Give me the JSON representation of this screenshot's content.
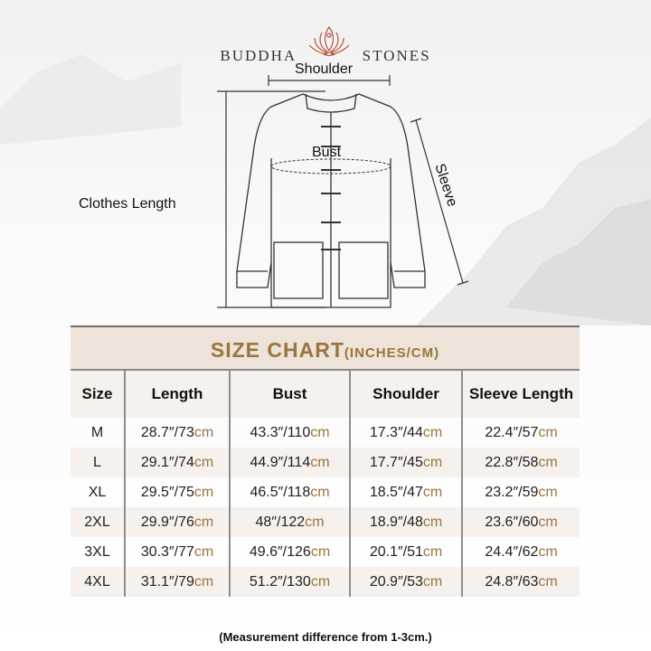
{
  "logo": {
    "left": "BUDDHA",
    "right": "STONES",
    "colors": {
      "text": "#3a3030",
      "lotus": "#b5533a"
    }
  },
  "diagram": {
    "shoulder": "Shoulder",
    "bust": "Bust",
    "clothes_length": "Clothes Length",
    "sleeve": "Sleeve"
  },
  "size_chart": {
    "title": "SIZE CHART",
    "title_units": "(INCHES/CM)",
    "accent": "#9a7540",
    "headers": [
      "Size",
      "Length",
      "Bust",
      "Shoulder",
      "Sleeve Length"
    ],
    "rows": [
      {
        "size": "M",
        "cells": [
          {
            "v": "28.7″/73",
            "u": "cm"
          },
          {
            "v": "43.3″/110",
            "u": "cm"
          },
          {
            "v": "17.3″/44",
            "u": "cm"
          },
          {
            "v": "22.4″/57",
            "u": "cm"
          }
        ]
      },
      {
        "size": "L",
        "cells": [
          {
            "v": "29.1″/74",
            "u": "cm"
          },
          {
            "v": "44.9″/114",
            "u": "cm"
          },
          {
            "v": "17.7″/45",
            "u": "cm"
          },
          {
            "v": "22.8″/58",
            "u": "cm"
          }
        ]
      },
      {
        "size": "XL",
        "cells": [
          {
            "v": "29.5″/75",
            "u": "cm"
          },
          {
            "v": "46.5″/118",
            "u": "cm"
          },
          {
            "v": "18.5″/47",
            "u": "cm"
          },
          {
            "v": "23.2″/59",
            "u": "cm"
          }
        ]
      },
      {
        "size": "2XL",
        "cells": [
          {
            "v": "29.9″/76",
            "u": "cm"
          },
          {
            "v": "48″/122",
            "u": "cm"
          },
          {
            "v": "18.9″/48",
            "u": "cm"
          },
          {
            "v": "23.6″/60",
            "u": "cm"
          }
        ]
      },
      {
        "size": "3XL",
        "cells": [
          {
            "v": "30.3″/77",
            "u": "cm"
          },
          {
            "v": "49.6″/126",
            "u": "cm"
          },
          {
            "v": "20.1″/51",
            "u": "cm"
          },
          {
            "v": "24.4″/62",
            "u": "cm"
          }
        ]
      },
      {
        "size": "4XL",
        "cells": [
          {
            "v": "31.1″/79",
            "u": "cm"
          },
          {
            "v": "51.2″/130",
            "u": "cm"
          },
          {
            "v": "20.9″/53",
            "u": "cm"
          },
          {
            "v": "24.8″/63",
            "u": "cm"
          }
        ]
      }
    ]
  },
  "note": "(Measurement difference from 1-3cm.)"
}
